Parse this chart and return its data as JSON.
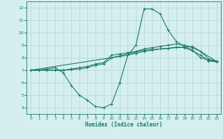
{
  "xlabel": "Humidex (Indice chaleur)",
  "background_color": "#d5eeee",
  "grid_color": "#bcd8d8",
  "line_color": "#1a7a6a",
  "xlim": [
    -0.5,
    23.5
  ],
  "ylim": [
    3.5,
    12.5
  ],
  "xticks": [
    0,
    1,
    2,
    3,
    4,
    5,
    6,
    7,
    8,
    9,
    10,
    11,
    12,
    13,
    14,
    15,
    16,
    17,
    18,
    19,
    20,
    21,
    22,
    23
  ],
  "yticks": [
    4,
    5,
    6,
    7,
    8,
    9,
    10,
    11,
    12
  ],
  "line1_x": [
    0,
    1,
    2,
    3,
    4,
    5,
    6,
    7,
    8,
    9,
    10,
    11,
    12,
    13,
    14,
    15,
    16,
    17,
    18,
    19,
    20,
    21,
    22,
    23
  ],
  "line1_y": [
    7.0,
    7.0,
    7.1,
    7.2,
    6.8,
    5.8,
    5.0,
    4.6,
    4.1,
    4.0,
    4.3,
    6.0,
    8.2,
    9.0,
    11.9,
    11.9,
    11.5,
    10.2,
    9.3,
    8.9,
    8.6,
    8.0,
    7.8,
    7.7
  ],
  "line2_x": [
    0,
    1,
    2,
    3,
    4,
    5,
    6,
    7,
    8,
    9,
    10,
    11,
    12,
    13,
    14,
    15,
    16,
    17,
    18,
    19,
    20,
    21,
    22,
    23
  ],
  "line2_y": [
    7.0,
    7.0,
    7.0,
    7.0,
    7.0,
    7.1,
    7.2,
    7.3,
    7.5,
    7.6,
    8.2,
    8.3,
    8.4,
    8.5,
    8.7,
    8.8,
    8.9,
    9.0,
    9.1,
    9.0,
    8.8,
    8.5,
    7.9,
    7.7
  ],
  "line3_x": [
    0,
    1,
    2,
    3,
    4,
    5,
    6,
    7,
    8,
    9,
    10,
    11,
    12,
    13,
    14,
    15,
    16,
    17,
    18,
    19,
    20,
    21,
    22,
    23
  ],
  "line3_y": [
    7.0,
    7.0,
    7.0,
    7.0,
    7.0,
    7.05,
    7.1,
    7.2,
    7.4,
    7.5,
    8.0,
    8.1,
    8.2,
    8.35,
    8.5,
    8.6,
    8.7,
    8.75,
    8.85,
    8.8,
    8.55,
    8.2,
    7.75,
    7.65
  ],
  "line4_x": [
    0,
    10,
    14,
    20,
    23
  ],
  "line4_y": [
    7.0,
    8.0,
    8.6,
    8.9,
    7.7
  ]
}
